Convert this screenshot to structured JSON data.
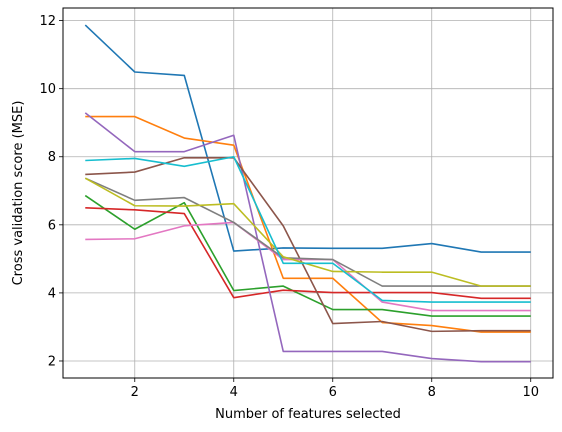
{
  "chart_data": {
    "type": "line",
    "title": "",
    "xlabel": "Number of features selected",
    "ylabel": "Cross validation score (MSE)",
    "xlim": [
      0.55,
      10.45
    ],
    "ylim": [
      1.5,
      12.37
    ],
    "xticks": [
      2,
      4,
      6,
      8,
      10
    ],
    "yticks": [
      2,
      4,
      6,
      8,
      10,
      12
    ],
    "grid": true,
    "x": [
      1,
      2,
      3,
      4,
      5,
      6,
      7,
      8,
      9,
      10
    ],
    "series": [
      {
        "color": "#1f77b4",
        "values": [
          11.87,
          10.49,
          10.39,
          5.23,
          5.32,
          5.31,
          5.31,
          5.45,
          5.2,
          5.2
        ]
      },
      {
        "color": "#ff7f0e",
        "values": [
          9.18,
          9.18,
          8.55,
          8.34,
          4.43,
          4.43,
          3.13,
          3.04,
          2.85,
          2.85
        ]
      },
      {
        "color": "#2ca02c",
        "values": [
          6.86,
          5.87,
          6.65,
          4.07,
          4.2,
          3.51,
          3.51,
          3.32,
          3.32,
          3.32
        ]
      },
      {
        "color": "#d62728",
        "values": [
          6.5,
          6.44,
          6.33,
          3.86,
          4.08,
          4.01,
          4.01,
          4.01,
          3.84,
          3.84
        ]
      },
      {
        "color": "#9467bd",
        "values": [
          9.29,
          8.15,
          8.15,
          8.63,
          2.28,
          2.28,
          2.28,
          2.07,
          1.98,
          1.98
        ]
      },
      {
        "color": "#8c564b",
        "values": [
          7.48,
          7.55,
          7.97,
          7.97,
          5.97,
          3.1,
          3.16,
          2.87,
          2.89,
          2.89
        ]
      },
      {
        "color": "#e377c2",
        "values": [
          5.57,
          5.59,
          5.97,
          6.07,
          4.98,
          4.98,
          3.73,
          3.48,
          3.48,
          3.48
        ]
      },
      {
        "color": "#7f7f7f",
        "values": [
          7.37,
          6.72,
          6.8,
          6.07,
          5.03,
          4.98,
          4.2,
          4.2,
          4.2,
          4.2
        ]
      },
      {
        "color": "#bcbd22",
        "values": [
          7.37,
          6.56,
          6.55,
          6.62,
          5.06,
          4.63,
          4.61,
          4.61,
          4.2,
          4.2
        ]
      },
      {
        "color": "#17becf",
        "values": [
          7.89,
          7.95,
          7.72,
          8.0,
          4.87,
          4.87,
          3.78,
          3.73,
          3.73,
          3.73
        ]
      }
    ]
  }
}
